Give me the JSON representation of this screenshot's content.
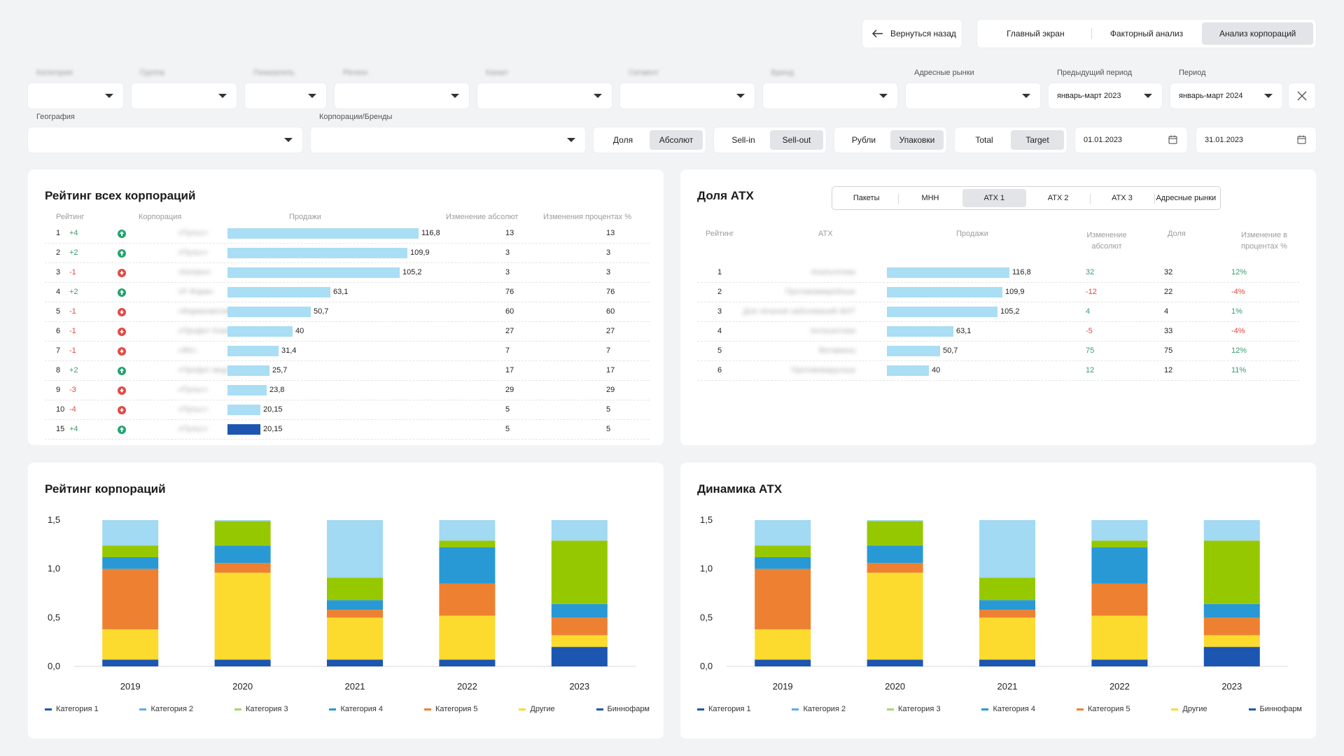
{
  "nav": {
    "back_label": "Вернуться назад",
    "tabs": [
      "Главный экран",
      "Факторный анализ",
      "Анализ корпораций"
    ],
    "active_tab": 2
  },
  "filters": {
    "blurred_labels": [
      "Категория",
      "Группа",
      "Показатель",
      "Регион",
      "Канал",
      "Сегмент",
      "Бренд"
    ],
    "address_markets_label": "Адресные рынки",
    "prev_period_label": "Предыдущий период",
    "prev_period_value": "январь-март 2023",
    "period_label": "Период",
    "period_value": "январь-март 2024",
    "geography_label": "География",
    "corporations_label": "Корпорации/Бренды",
    "toggles": [
      {
        "options": [
          "Доля",
          "Абсолют"
        ],
        "active": 1
      },
      {
        "options": [
          "Sell-in",
          "Sell-out"
        ],
        "active": 1
      },
      {
        "options": [
          "Рубли",
          "Упаковки"
        ],
        "active": 1
      },
      {
        "options": [
          "Total",
          "Target"
        ],
        "active": 1
      }
    ],
    "date_from": "01.01.2023",
    "date_to": "31.01.2023"
  },
  "rating_all": {
    "title": "Рейтинг всех корпораций",
    "headers": [
      "Рейтинг",
      "Корпорация",
      "Продажи",
      "Изменение абсолют",
      "Изменения процентах %"
    ],
    "rows": [
      {
        "rank": "1",
        "delta": "+4",
        "dir": "up",
        "name": "«Пульс»",
        "sales": 116.8,
        "sales_label": "116,8",
        "abs": "13",
        "pct": "13"
      },
      {
        "rank": "2",
        "delta": "+2",
        "dir": "up",
        "name": "«Пульс»",
        "sales": 109.9,
        "sales_label": "109,9",
        "abs": "3",
        "pct": "3"
      },
      {
        "rank": "3",
        "delta": "-1",
        "dir": "down",
        "name": "«Катрен»",
        "sales": 105.2,
        "sales_label": "105,2",
        "abs": "3",
        "pct": "3"
      },
      {
        "rank": "4",
        "delta": "+2",
        "dir": "up",
        "name": "«Р-Фарм»",
        "sales": 63.1,
        "sales_label": "63,1",
        "abs": "76",
        "pct": "76"
      },
      {
        "rank": "5",
        "delta": "-1",
        "dir": "down",
        "name": "«Фармкомплект»",
        "sales": 50.7,
        "sales_label": "50,7",
        "abs": "60",
        "pct": "60"
      },
      {
        "rank": "6",
        "delta": "-1",
        "dir": "down",
        "name": "«Профит Компания»",
        "sales": 40,
        "sales_label": "40",
        "abs": "27",
        "pct": "27"
      },
      {
        "rank": "7",
        "delta": "-1",
        "dir": "down",
        "name": "«ФК»",
        "sales": 31.4,
        "sales_label": "31,4",
        "abs": "7",
        "pct": "7"
      },
      {
        "rank": "8",
        "delta": "+2",
        "dir": "up",
        "name": "«Профит мед»",
        "sales": 25.7,
        "sales_label": "25,7",
        "abs": "17",
        "pct": "17"
      },
      {
        "rank": "9",
        "delta": "-3",
        "dir": "down",
        "name": "«Пульс»",
        "sales": 23.8,
        "sales_label": "23,8",
        "abs": "29",
        "pct": "29"
      },
      {
        "rank": "10",
        "delta": "-4",
        "dir": "down",
        "name": "«Пульс»",
        "sales": 20.15,
        "sales_label": "20,15",
        "abs": "5",
        "pct": "5"
      },
      {
        "rank": "15",
        "delta": "+4",
        "dir": "up",
        "name": "«Пульс»",
        "sales": 20.15,
        "sales_label": "20,15",
        "abs": "5",
        "pct": "5",
        "highlight": true
      }
    ]
  },
  "atx_share": {
    "title": "Доля АТХ",
    "tabs": [
      "Пакеты",
      "МНН",
      "АТХ 1",
      "АТХ 2",
      "АТХ 3",
      "Адресные рынки"
    ],
    "active_tab": 2,
    "headers": [
      "Рейтинг",
      "АТХ",
      "Продажи",
      "Изменение абсолют",
      "Доля",
      "Изменение в процентах %"
    ],
    "rows": [
      {
        "rank": "1",
        "name": "Анальгетики",
        "sales": 116.8,
        "sales_label": "116,8",
        "abs": "32",
        "abs_dir": "pos",
        "share": "32",
        "pct": "12%",
        "pct_dir": "pos"
      },
      {
        "rank": "2",
        "name": "Противомикробные",
        "sales": 109.9,
        "sales_label": "109,9",
        "abs": "-12",
        "abs_dir": "neg",
        "share": "22",
        "pct": "-4%",
        "pct_dir": "neg"
      },
      {
        "rank": "3",
        "name": "Для лечения заболеваний ЖКТ",
        "sales": 105.2,
        "sales_label": "105,2",
        "abs": "4",
        "abs_dir": "pos",
        "share": "4",
        "pct": "1%",
        "pct_dir": "pos"
      },
      {
        "rank": "4",
        "name": "Антисептики",
        "sales": 63.1,
        "sales_label": "63,1",
        "abs": "-5",
        "abs_dir": "neg",
        "share": "33",
        "pct": "-4%",
        "pct_dir": "neg"
      },
      {
        "rank": "5",
        "name": "Витамины",
        "sales": 50.7,
        "sales_label": "50,7",
        "abs": "75",
        "abs_dir": "pos",
        "share": "75",
        "pct": "12%",
        "pct_dir": "pos"
      },
      {
        "rank": "6",
        "name": "Противовирусные",
        "sales": 40,
        "sales_label": "40",
        "abs": "12",
        "abs_dir": "pos",
        "share": "12",
        "pct": "11%",
        "pct_dir": "pos"
      }
    ]
  },
  "colors": {
    "bar_light": "#a9def4",
    "bar_dark": "#1c56b1",
    "positive": "#3a9d6e",
    "negative": "#e0483f"
  },
  "chart_data": [
    {
      "type": "bar",
      "stacked": true,
      "title": "Рейтинг корпораций",
      "categories": [
        "2019",
        "2020",
        "2021",
        "2022",
        "2023"
      ],
      "ylim": [
        0,
        1.5
      ],
      "yticks": [
        "0,0",
        "0,5",
        "1,0",
        "1,5"
      ],
      "legend_position": "bottom",
      "series": [
        {
          "name": "Биннофарм",
          "color": "#1c56b1",
          "values": [
            0.07,
            0.07,
            0.07,
            0.07,
            0.2
          ]
        },
        {
          "name": "Другие",
          "color": "#fcdb2e",
          "values": [
            0.31,
            0.89,
            0.43,
            0.45,
            0.12
          ]
        },
        {
          "name": "Категория 5",
          "color": "#ee8131",
          "values": [
            0.62,
            0.1,
            0.08,
            0.33,
            0.18
          ]
        },
        {
          "name": "Категория 4",
          "color": "#2899d5",
          "values": [
            0.12,
            0.18,
            0.1,
            0.37,
            0.14
          ]
        },
        {
          "name": "Категория 3",
          "color": "#96c800",
          "values": [
            0.12,
            0.25,
            0.23,
            0.07,
            0.65
          ]
        },
        {
          "name": "Категория 2",
          "color": "#a2d9f3",
          "values": [
            0.26,
            0.01,
            0.59,
            0.21,
            0.21
          ]
        },
        {
          "name": "Категория 1",
          "color": "#1c56b1",
          "values": [
            0,
            0,
            0,
            0,
            0
          ]
        }
      ],
      "legend": [
        "Категория 1",
        "Категория 2",
        "Категория 3",
        "Категория 4",
        "Категория 5",
        "Другие",
        "Биннофарм"
      ],
      "legend_colors": [
        "#1c56b1",
        "#5aaee6",
        "#a6d66a",
        "#2899d5",
        "#ee8131",
        "#fcdb2e",
        "#1c56b1"
      ]
    },
    {
      "type": "bar",
      "stacked": true,
      "title": "Динамика АТХ",
      "categories": [
        "2019",
        "2020",
        "2021",
        "2022",
        "2023"
      ],
      "ylim": [
        0,
        1.5
      ],
      "yticks": [
        "0,0",
        "0,5",
        "1,0",
        "1,5"
      ],
      "legend_position": "bottom",
      "series": [
        {
          "name": "Биннофарм",
          "color": "#1c56b1",
          "values": [
            0.07,
            0.07,
            0.07,
            0.07,
            0.2
          ]
        },
        {
          "name": "Другие",
          "color": "#fcdb2e",
          "values": [
            0.31,
            0.89,
            0.43,
            0.45,
            0.12
          ]
        },
        {
          "name": "Категория 5",
          "color": "#ee8131",
          "values": [
            0.62,
            0.1,
            0.08,
            0.33,
            0.18
          ]
        },
        {
          "name": "Категория 4",
          "color": "#2899d5",
          "values": [
            0.12,
            0.18,
            0.1,
            0.37,
            0.14
          ]
        },
        {
          "name": "Категория 3",
          "color": "#96c800",
          "values": [
            0.12,
            0.25,
            0.23,
            0.07,
            0.65
          ]
        },
        {
          "name": "Категория 2",
          "color": "#a2d9f3",
          "values": [
            0.26,
            0.01,
            0.59,
            0.21,
            0.21
          ]
        },
        {
          "name": "Категория 1",
          "color": "#1c56b1",
          "values": [
            0,
            0,
            0,
            0,
            0
          ]
        }
      ],
      "legend": [
        "Категория 1",
        "Категория 2",
        "Категория 3",
        "Категория 4",
        "Категория 5",
        "Другие",
        "Биннофарм"
      ],
      "legend_colors": [
        "#1c56b1",
        "#5aaee6",
        "#a6d66a",
        "#2899d5",
        "#ee8131",
        "#fcdb2e",
        "#1c56b1"
      ]
    }
  ]
}
